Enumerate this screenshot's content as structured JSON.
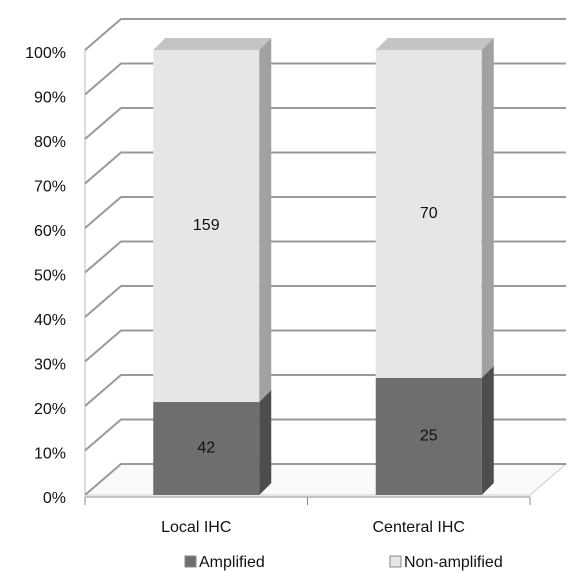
{
  "chart_data": {
    "type": "bar",
    "stacked": "percent",
    "categories": [
      "Local IHC",
      "Centeral IHC"
    ],
    "series": [
      {
        "name": "Amplified",
        "color": "#6e6e6e",
        "values": [
          42,
          25
        ]
      },
      {
        "name": "Non-amplified",
        "color": "#e6e6e6",
        "values": [
          159,
          70
        ]
      }
    ],
    "ylim": [
      0,
      100
    ],
    "yticks": [
      {
        "value": 0,
        "label": "0%"
      },
      {
        "value": 10,
        "label": "10%"
      },
      {
        "value": 20,
        "label": "20%"
      },
      {
        "value": 30,
        "label": "30%"
      },
      {
        "value": 40,
        "label": "40%"
      },
      {
        "value": 50,
        "label": "50%"
      },
      {
        "value": 60,
        "label": "60%"
      },
      {
        "value": 70,
        "label": "70%"
      },
      {
        "value": 80,
        "label": "80%"
      },
      {
        "value": 90,
        "label": "90%"
      },
      {
        "value": 100,
        "label": "100%"
      }
    ],
    "grid": true,
    "legend": "bottom"
  }
}
